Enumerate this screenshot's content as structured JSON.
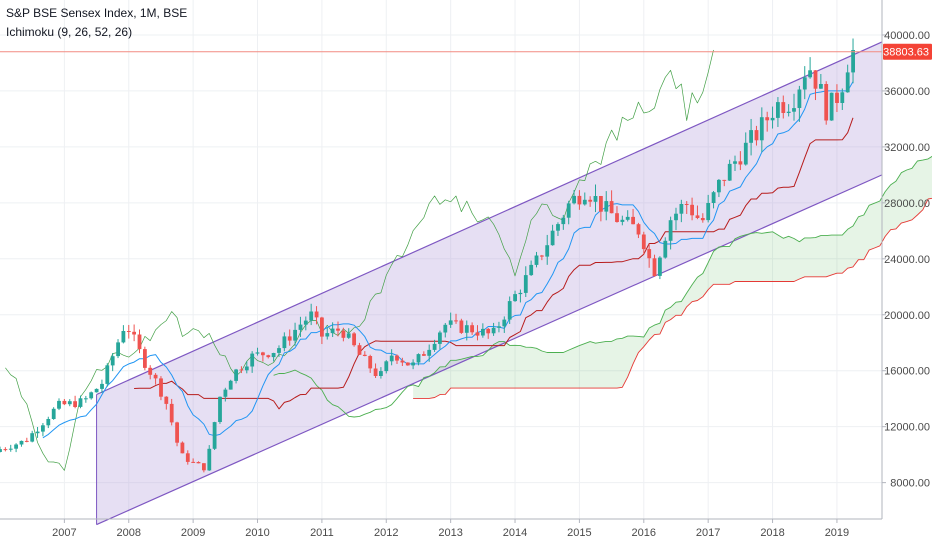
{
  "header": {
    "symbol_title": "S&P BSE Sensex Index, 1M, BSE",
    "indicator_label": "Ichimoku (9, 26, 52, 26)"
  },
  "chart_data": {
    "type": "candlestick",
    "title": "S&P BSE Sensex Index, 1M, BSE",
    "indicator": "Ichimoku (9, 26, 52, 26)",
    "y_axis": {
      "position": "right",
      "ylim": [
        5400,
        42500
      ],
      "ticks": [
        8000,
        12000,
        16000,
        20000,
        24000,
        28000,
        32000,
        36000,
        40000
      ],
      "tick_labels": [
        "8000.00",
        "12000.00",
        "16000.00",
        "20000.00",
        "24000.00",
        "28000.00",
        "32000.00",
        "36000.00",
        "40000.00"
      ]
    },
    "x_axis": {
      "start": 2006.0,
      "end": 2019.7,
      "ticks": [
        2007,
        2008,
        2009,
        2010,
        2011,
        2012,
        2013,
        2014,
        2015,
        2016,
        2017,
        2018,
        2019
      ],
      "tick_labels": [
        "2007",
        "2008",
        "2009",
        "2010",
        "2011",
        "2012",
        "2013",
        "2014",
        "2015",
        "2016",
        "2017",
        "2018",
        "2019"
      ]
    },
    "last_price": {
      "value": 38803.63,
      "label": "38803.63"
    },
    "colors": {
      "up": "#26a69a",
      "down": "#ef5350",
      "tenkan": "#2196f3",
      "kijun": "#b71c1c",
      "chikou": "#43a047",
      "senkou_a": "#4caf50",
      "senkou_b": "#e53935",
      "channel_fill": "#b39ddb",
      "channel_line": "#7e57c2",
      "price_line": "#f28b82",
      "price_tag": "#f44336"
    },
    "channel": {
      "x_start": 2007.5,
      "x_end": 2019.7,
      "upper": [
        14300,
        39500
      ],
      "lower": [
        5000,
        30000
      ]
    },
    "price_keypoints": [
      [
        2006.0,
        10400
      ],
      [
        2006.4,
        11000
      ],
      [
        2006.9,
        13500
      ],
      [
        2007.3,
        13800
      ],
      [
        2007.6,
        15200
      ],
      [
        2007.95,
        19500
      ],
      [
        2008.2,
        17000
      ],
      [
        2008.45,
        15000
      ],
      [
        2008.6,
        13500
      ],
      [
        2008.8,
        10000
      ],
      [
        2009.0,
        9400
      ],
      [
        2009.2,
        9000
      ],
      [
        2009.4,
        14000
      ],
      [
        2009.6,
        15700
      ],
      [
        2009.9,
        17000
      ],
      [
        2010.3,
        17500
      ],
      [
        2010.7,
        19500
      ],
      [
        2010.85,
        20000
      ],
      [
        2011.0,
        18500
      ],
      [
        2011.3,
        19000
      ],
      [
        2011.6,
        17000
      ],
      [
        2011.9,
        15500
      ],
      [
        2012.1,
        17300
      ],
      [
        2012.4,
        16300
      ],
      [
        2012.6,
        17400
      ],
      [
        2012.9,
        19300
      ],
      [
        2013.3,
        19000
      ],
      [
        2013.65,
        18500
      ],
      [
        2013.95,
        21000
      ],
      [
        2014.3,
        23500
      ],
      [
        2014.6,
        26000
      ],
      [
        2014.85,
        28000
      ],
      [
        2015.1,
        29000
      ],
      [
        2015.4,
        27500
      ],
      [
        2015.7,
        26500
      ],
      [
        2015.95,
        26000
      ],
      [
        2016.15,
        23000
      ],
      [
        2016.4,
        26800
      ],
      [
        2016.65,
        28000
      ],
      [
        2016.9,
        26600
      ],
      [
        2017.2,
        29600
      ],
      [
        2017.5,
        31500
      ],
      [
        2017.8,
        33200
      ],
      [
        2018.05,
        35000
      ],
      [
        2018.3,
        35300
      ],
      [
        2018.55,
        38000
      ],
      [
        2018.7,
        36500
      ],
      [
        2018.85,
        34500
      ],
      [
        2019.05,
        36000
      ],
      [
        2019.2,
        38700
      ],
      [
        2019.25,
        38800
      ]
    ]
  }
}
